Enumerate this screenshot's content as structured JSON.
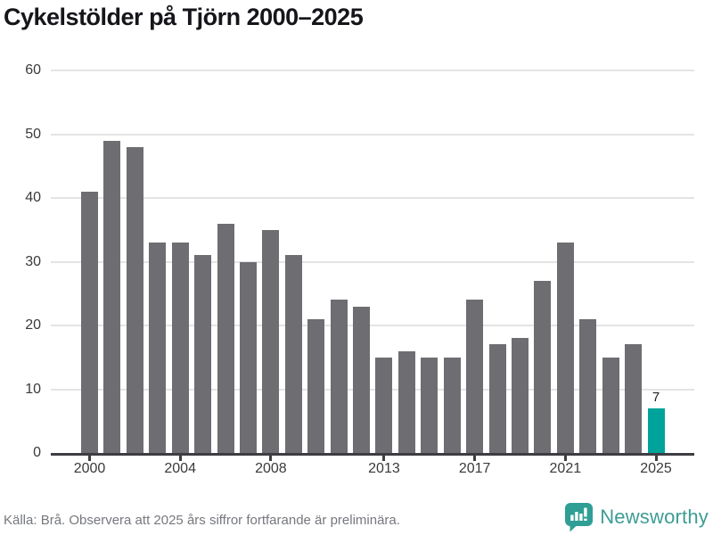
{
  "title": "Cykelstölder på Tjörn 2000–2025",
  "footer": {
    "source_note": "Källa: Brå. Observera att 2025 års siffror fortfarande är preliminära."
  },
  "branding": {
    "name": "Newsworthy",
    "icon": "bar-chart-speech-bubble-icon",
    "text_color": "#3d9c94",
    "icon_color": "#2f9e95"
  },
  "chart_data": {
    "type": "bar",
    "title": "Cykelstölder på Tjörn 2000–2025",
    "categories": [
      "2000",
      "2001",
      "2002",
      "2003",
      "2004",
      "2005",
      "2006",
      "2007",
      "2008",
      "2009",
      "2010",
      "2011",
      "2012",
      "2013",
      "2014",
      "2015",
      "2016",
      "2017",
      "2018",
      "2019",
      "2020",
      "2021",
      "2022",
      "2023",
      "2024",
      "2025"
    ],
    "values": [
      41,
      49,
      48,
      33,
      33,
      31,
      36,
      30,
      35,
      31,
      21,
      24,
      23,
      15,
      16,
      15,
      15,
      24,
      17,
      18,
      27,
      33,
      21,
      15,
      17,
      7
    ],
    "xlabel": "",
    "ylabel": "",
    "ylim": [
      0,
      60
    ],
    "y_ticks": [
      0,
      10,
      20,
      30,
      40,
      50,
      60
    ],
    "x_tick_labels": [
      "2000",
      "2004",
      "2008",
      "2013",
      "2017",
      "2021",
      "2025"
    ],
    "grid": "horizontal",
    "legend": "none",
    "bar_color": "#6e6d72",
    "highlight_color": "#00a39b",
    "highlight_category": "2025",
    "data_labels": [
      {
        "category": "2025",
        "text": "7"
      }
    ],
    "grid_color": "#e4e4e4",
    "axis_color": "#3d3d42",
    "tick_label_color": "#3a3a3a"
  }
}
